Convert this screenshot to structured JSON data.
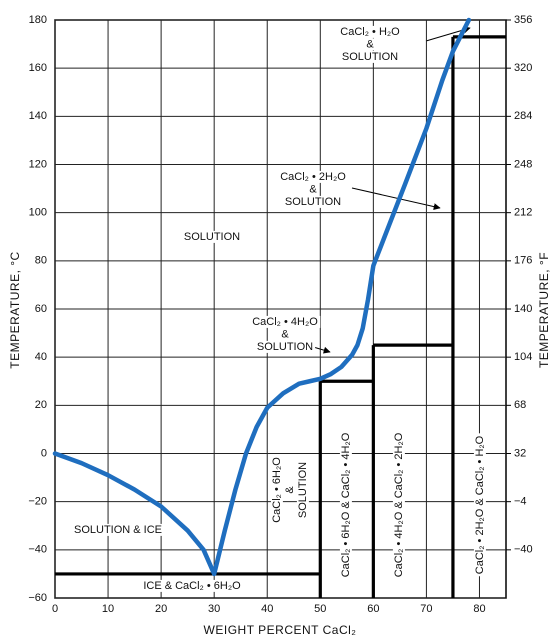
{
  "chart_data": {
    "type": "line",
    "xlabel": "WEIGHT  PERCENT  CaCl₂",
    "ylabel": "TEMPERATURE, °C",
    "y2label": "TEMPERATURE, °F",
    "xlim": [
      0,
      85
    ],
    "xticks": [
      0,
      10,
      20,
      30,
      40,
      50,
      60,
      70,
      80
    ],
    "ylim": [
      -60,
      180
    ],
    "yticks": [
      {
        "value": -60,
        "label": "−60"
      },
      {
        "value": -40,
        "label": "−40"
      },
      {
        "value": -20,
        "label": "−20"
      },
      0,
      20,
      40,
      60,
      80,
      100,
      120,
      140,
      160,
      180
    ],
    "y2lim": [
      -76,
      356
    ],
    "y2ticks": [
      {
        "value": -40,
        "label": "−40"
      },
      {
        "value": -4,
        "label": "−4"
      },
      32,
      68,
      104,
      140,
      176,
      212,
      248,
      284,
      320,
      356
    ],
    "grid": true,
    "series": [
      {
        "color": "#1f6ebf",
        "x": [
          0,
          5,
          10,
          15,
          20,
          25,
          28,
          30,
          32,
          34,
          36,
          38,
          40,
          43,
          46,
          48,
          50,
          52,
          54,
          56,
          57,
          58,
          59,
          60,
          63,
          66,
          70,
          73,
          75,
          78
        ],
        "values": [
          0,
          -4,
          -9,
          -15,
          -22,
          -32,
          -40,
          -50,
          -32,
          -15,
          0,
          11,
          19,
          25,
          29,
          30,
          31,
          33,
          36,
          41,
          45,
          52,
          64,
          78,
          95,
          112,
          135,
          155,
          167,
          180
        ]
      }
    ],
    "boundaries": [
      {
        "x": [
          0,
          50
        ],
        "y": [
          -50,
          -50
        ]
      },
      {
        "x": [
          50,
          50
        ],
        "y": [
          -60,
          30
        ]
      },
      {
        "x": [
          50,
          60
        ],
        "y": [
          30,
          30
        ]
      },
      {
        "x": [
          60,
          60
        ],
        "y": [
          -60,
          45
        ]
      },
      {
        "x": [
          60,
          75
        ],
        "y": [
          45,
          45
        ]
      },
      {
        "x": [
          75,
          75
        ],
        "y": [
          -60,
          173
        ]
      },
      {
        "x": [
          75,
          85
        ],
        "y": [
          173,
          173
        ]
      }
    ],
    "annotations": [
      [
        "CaCl₂ • H₂O",
        "&",
        "SOLUTION"
      ],
      [
        "CaCl₂ • 2H₂O",
        "&",
        "SOLUTION"
      ],
      [
        "SOLUTION"
      ],
      [
        "CaCl₂ • 4H₂O",
        "&",
        "SOLUTION"
      ],
      [
        "SOLUTION & ICE"
      ],
      [
        "ICE  &  CaCl₂ • 6H₂O"
      ],
      [
        "CaCl₂ • 6H₂O",
        "&",
        "SOLUTION"
      ],
      [
        "CaCl₂ • 6H₂O  &  CaCl₂ • 4H₂O"
      ],
      [
        "CaCl₂ • 4H₂O  &  CaCl₂ • 2H₂O"
      ],
      [
        "CaCl₂ • 2H₂O  &  CaCl₂ • H₂O"
      ]
    ]
  }
}
